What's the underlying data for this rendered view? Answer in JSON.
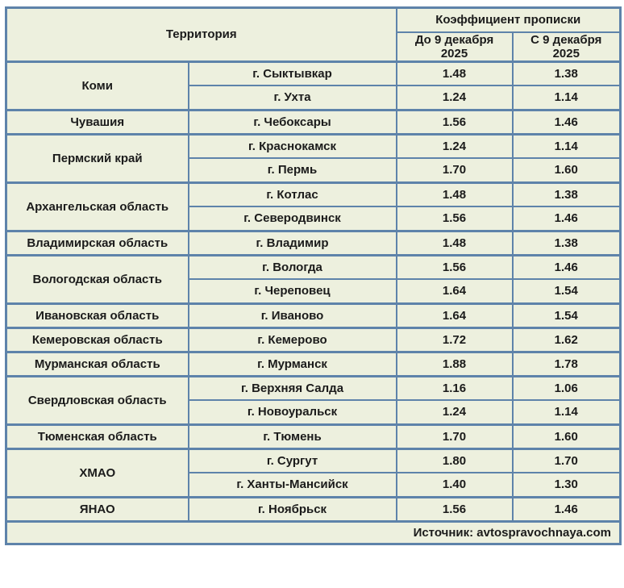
{
  "table": {
    "header": {
      "territory": "Территория",
      "coefficient_group": "Коэффициент прописки",
      "col_before": "До 9 декабря 2025",
      "col_after": "С 9 декабря 2025"
    },
    "source": "Источник: avtospravochnaya.com"
  },
  "colors": {
    "border": "#5e83aa",
    "cell_background": "#edf0de",
    "page_background": "#ffffff",
    "text": "#1b1b1b"
  },
  "chart_data": {
    "type": "table",
    "title": "Коэффициент прописки",
    "columns": [
      "Территория — регион",
      "Территория — город",
      "До 9 декабря 2025",
      "С 9 декабря 2025"
    ],
    "rows": [
      [
        "Коми",
        "г. Сыктывкар",
        "1.48",
        "1.38"
      ],
      [
        "Коми",
        "г. Ухта",
        "1.24",
        "1.14"
      ],
      [
        "Чувашия",
        "г. Чебоксары",
        "1.56",
        "1.46"
      ],
      [
        "Пермский край",
        "г. Краснокамск",
        "1.24",
        "1.14"
      ],
      [
        "Пермский край",
        "г. Пермь",
        "1.70",
        "1.60"
      ],
      [
        "Архангельская область",
        "г. Котлас",
        "1.48",
        "1.38"
      ],
      [
        "Архангельская область",
        "г. Северодвинск",
        "1.56",
        "1.46"
      ],
      [
        "Владимирская область",
        "г. Владимир",
        "1.48",
        "1.38"
      ],
      [
        "Вологодская область",
        "г. Вологда",
        "1.56",
        "1.46"
      ],
      [
        "Вологодская область",
        "г. Череповец",
        "1.64",
        "1.54"
      ],
      [
        "Ивановская область",
        "г. Иваново",
        "1.64",
        "1.54"
      ],
      [
        "Кемеровская область",
        "г. Кемерово",
        "1.72",
        "1.62"
      ],
      [
        "Мурманская область",
        "г. Мурманск",
        "1.88",
        "1.78"
      ],
      [
        "Свердловская область",
        "г. Верхняя Салда",
        "1.16",
        "1.06"
      ],
      [
        "Свердловская область",
        "г. Новоуральск",
        "1.24",
        "1.14"
      ],
      [
        "Тюменская область",
        "г. Тюмень",
        "1.70",
        "1.60"
      ],
      [
        "ХМАО",
        "г. Сургут",
        "1.80",
        "1.70"
      ],
      [
        "ХМАО",
        "г. Ханты-Мансийск",
        "1.40",
        "1.30"
      ],
      [
        "ЯНАО",
        "г. Ноябрьск",
        "1.56",
        "1.46"
      ]
    ],
    "source": "Источник: avtospravochnaya.com",
    "layout": {
      "region_column_uses_merged_rowspan": true,
      "legend": "none",
      "grid": "full blue cell borders"
    }
  }
}
